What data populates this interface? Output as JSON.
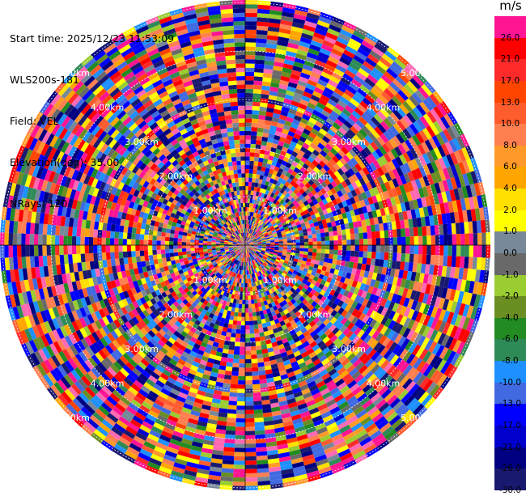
{
  "header": {
    "start_time": "Start time: 2025/12/23 11:53:09",
    "instrument": "WLS200s-181",
    "field": "Field: VEL",
    "elevation": "Elevation(deg): 35.00",
    "nrays": "NRays: 120"
  },
  "range_rings": [
    {
      "label": "1.00km",
      "rank": 1
    },
    {
      "label": "2.00km",
      "rank": 2
    },
    {
      "label": "3.00km",
      "rank": 3
    },
    {
      "label": "4.00km",
      "rank": 4
    },
    {
      "label": "5.00km",
      "rank": 5
    }
  ],
  "colorbar": {
    "unit": "m/s",
    "boundaries": [
      "26.0",
      "21.0",
      "17.0",
      "13.0",
      "10.0",
      "8.0",
      "6.0",
      "4.0",
      "2.0",
      "1.0",
      "0.0",
      "-1.0",
      "-2.0",
      "-4.0",
      "-6.0",
      "-8.0",
      "-10.0",
      "-13.0",
      "-17.0",
      "-21.0",
      "-26.0",
      "-30.0"
    ],
    "colors": [
      "#ff1493",
      "#ff0000",
      "#ff2a2a",
      "#ff4500",
      "#ff5c2e",
      "#ff7f50",
      "#ff9a2a",
      "#ffa500",
      "#ffe000",
      "#ffff00",
      "#778899",
      "#696969",
      "#9acd32",
      "#6b8e23",
      "#228b22",
      "#2e8b57",
      "#1e90ff",
      "#4169e1",
      "#0000ff",
      "#0000cd",
      "#000080",
      "#191970"
    ]
  }
}
